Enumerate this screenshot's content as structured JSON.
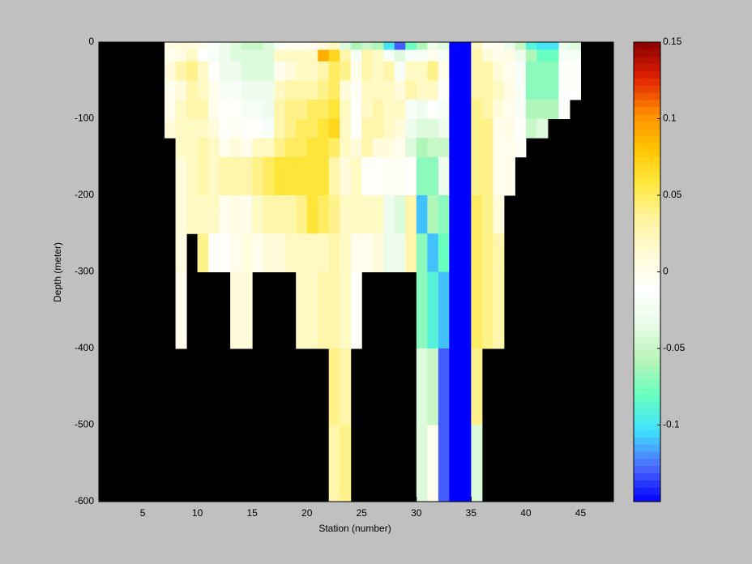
{
  "chart_data": {
    "type": "heatmap",
    "xlabel": "Station (number)",
    "ylabel": "Depth (meter)",
    "xlim": [
      1,
      48
    ],
    "ylim": [
      -600,
      0
    ],
    "xticks": [
      5,
      10,
      15,
      20,
      25,
      30,
      35,
      40,
      45
    ],
    "yticks": [
      0,
      -100,
      -200,
      -300,
      -400,
      -500,
      -600
    ],
    "clim": [
      -0.15,
      0.15
    ],
    "cticks": [
      0.15,
      0.1,
      0.05,
      0,
      -0.05,
      -0.1
    ],
    "background": "#000000",
    "colormap": [
      "#0000ff",
      "#4d6bff",
      "#40e0ff",
      "#66ffc0",
      "#b8f5b8",
      "#e8fbe8",
      "#ffffff",
      "#fffbd8",
      "#fff5a0",
      "#ffe840",
      "#ffc400",
      "#ff8c00",
      "#e02000",
      "#8b0000"
    ],
    "x_edges": [
      7,
      8,
      9,
      10,
      11,
      12,
      13,
      14,
      15,
      16,
      17,
      18,
      19,
      20,
      21,
      22,
      23,
      24,
      25,
      26,
      27,
      28,
      29,
      30,
      31,
      32,
      33,
      34,
      35,
      36,
      37,
      38,
      39,
      40,
      41,
      42,
      43,
      44,
      45
    ],
    "y_edges": [
      0,
      -10,
      -25,
      -50,
      -75,
      -100,
      -125,
      -150,
      -200,
      -250,
      -300,
      -400,
      -500,
      -600
    ],
    "z": [
      [
        0.005,
        0,
        0.01,
        0,
        0,
        0.01,
        null,
        null,
        null,
        null,
        null,
        null,
        null
      ],
      [
        0.01,
        0.005,
        0.03,
        0.01,
        0.02,
        0.02,
        0.02,
        0.01,
        0.01,
        0.005,
        0,
        null,
        null
      ],
      [
        0.01,
        0.02,
        0.04,
        0.03,
        0.03,
        0.02,
        0.02,
        0.02,
        0.02,
        null,
        null,
        null,
        null
      ],
      [
        0,
        -0.01,
        0.02,
        0.02,
        0.03,
        0.02,
        0.03,
        0.03,
        0.02,
        0.04,
        null,
        null,
        null
      ],
      [
        -0.02,
        -0.02,
        -0.01,
        0,
        0,
        0.01,
        0.02,
        0.02,
        0.02,
        -0.01,
        null,
        null,
        null
      ],
      [
        -0.03,
        -0.03,
        -0.03,
        -0.02,
        -0.01,
        -0.01,
        0,
        0.03,
        0,
        -0.01,
        null,
        null,
        null
      ],
      [
        -0.04,
        -0.04,
        -0.03,
        -0.02,
        -0.01,
        -0.005,
        0.01,
        0.03,
        0.005,
        0,
        0.01,
        null,
        null
      ],
      [
        -0.05,
        -0.04,
        -0.04,
        -0.03,
        -0.02,
        -0.01,
        0,
        0.03,
        0,
        0.01,
        0.01,
        null,
        null
      ],
      [
        -0.05,
        -0.04,
        -0.04,
        -0.03,
        -0.02,
        -0.01,
        0.02,
        0.04,
        0.02,
        0,
        null,
        null,
        null
      ],
      [
        -0.04,
        -0.04,
        -0.04,
        -0.03,
        -0.03,
        -0.02,
        0.02,
        0.05,
        0.03,
        0.01,
        null,
        null,
        null
      ],
      [
        -0.02,
        0.02,
        0,
        0.02,
        0.03,
        0.03,
        0.04,
        0.06,
        0.03,
        0.01,
        null,
        null,
        null
      ],
      [
        0,
        0.02,
        0.01,
        0.03,
        0.04,
        0.04,
        0.05,
        0.06,
        0.03,
        0.02,
        null,
        null,
        null
      ],
      [
        0,
        0.02,
        0.02,
        0.03,
        0.04,
        0.05,
        0.05,
        0.06,
        0.04,
        0.02,
        0.02,
        null,
        null
      ],
      [
        0,
        0.02,
        0.02,
        0.03,
        0.05,
        0.05,
        0.06,
        0.06,
        0.06,
        0.02,
        0.02,
        null,
        null
      ],
      [
        0.01,
        0.09,
        0.03,
        0.04,
        0.05,
        0.06,
        0.06,
        0.06,
        0.05,
        0.02,
        0.03,
        null,
        null
      ],
      [
        0.02,
        0.07,
        0.05,
        0.05,
        0.06,
        0.07,
        0.05,
        0.03,
        0.04,
        0.03,
        0.03,
        0.04,
        0.03
      ],
      [
        -0.04,
        0.03,
        0.04,
        0.01,
        0.02,
        0.02,
        0.02,
        0.01,
        0.02,
        0.02,
        0.02,
        0.03,
        0.04
      ],
      [
        -0.06,
        -0.02,
        0,
        -0.005,
        -0.01,
        -0.01,
        0.01,
        0.02,
        0.02,
        0,
        -0.01,
        null,
        null
      ],
      [
        -0.05,
        0.03,
        0.03,
        0.02,
        0.02,
        0.03,
        0.03,
        -0.01,
        0.02,
        0,
        null,
        null,
        null
      ],
      [
        -0.06,
        0.02,
        0.02,
        0.02,
        0.03,
        0.03,
        0.01,
        -0.01,
        0.02,
        0.01,
        null,
        null,
        null
      ],
      [
        -0.1,
        -0.02,
        0.03,
        0.02,
        0.02,
        0.02,
        0.01,
        -0.005,
        -0.03,
        -0.03,
        null,
        null,
        null
      ],
      [
        -0.13,
        -0.04,
        -0.02,
        0.01,
        0.02,
        0.01,
        0,
        -0.005,
        -0.04,
        -0.03,
        null,
        null,
        null
      ],
      [
        -0.08,
        -0.02,
        0.02,
        0.03,
        -0.02,
        -0.03,
        -0.04,
        -0.01,
        0.03,
        0.03,
        null,
        null,
        null
      ],
      [
        -0.06,
        -0.02,
        0.02,
        0.02,
        -0.03,
        -0.04,
        -0.06,
        -0.07,
        -0.11,
        -0.07,
        -0.07,
        -0.04,
        -0.04
      ],
      [
        -0.03,
        0,
        0.04,
        0.02,
        -0.01,
        -0.04,
        -0.05,
        -0.07,
        -0.06,
        -0.11,
        -0.09,
        -0.05,
        0
      ],
      [
        -0.04,
        -0.02,
        0,
        -0.01,
        -0.02,
        -0.03,
        -0.05,
        -0.03,
        -0.07,
        -0.08,
        -0.11,
        -0.13,
        -0.13
      ],
      [
        -0.15,
        -0.15,
        -0.15,
        -0.15,
        -0.15,
        -0.15,
        -0.15,
        -0.15,
        -0.15,
        -0.15,
        -0.15,
        -0.15,
        -0.15
      ],
      [
        -0.15,
        -0.15,
        -0.15,
        -0.15,
        -0.15,
        -0.15,
        -0.15,
        -0.15,
        -0.15,
        -0.15,
        -0.15,
        -0.15,
        -0.15
      ],
      [
        0.02,
        0.03,
        0.03,
        0.03,
        0.04,
        0.04,
        0.04,
        0.04,
        0.05,
        0.05,
        0.05,
        0.04,
        -0.04
      ],
      [
        0,
        0.01,
        0.03,
        0.03,
        0.03,
        0.04,
        0.04,
        0.04,
        0.04,
        0.04,
        0.04,
        null,
        null
      ],
      [
        0,
        0,
        0.01,
        0.02,
        0.01,
        0,
        0,
        0,
        0.01,
        0.03,
        0.03,
        null,
        null
      ],
      [
        -0.03,
        0.005,
        0,
        0.005,
        0,
        0.005,
        0,
        0,
        null,
        null,
        null,
        null,
        null
      ],
      [
        -0.05,
        -0.03,
        -0.02,
        -0.02,
        -0.02,
        -0.01,
        -0.005,
        null,
        null,
        null,
        null,
        null,
        null
      ],
      [
        -0.09,
        -0.06,
        -0.07,
        -0.07,
        -0.06,
        -0.05,
        null,
        null,
        null,
        null,
        null,
        null,
        null
      ],
      [
        -0.1,
        -0.08,
        -0.07,
        -0.07,
        -0.06,
        -0.04,
        null,
        null,
        null,
        null,
        null,
        null,
        null
      ],
      [
        -0.1,
        -0.08,
        -0.07,
        -0.07,
        -0.06,
        null,
        null,
        null,
        null,
        null,
        null,
        null,
        null
      ],
      [
        -0.03,
        -0.02,
        -0.01,
        -0.01,
        -0.01,
        null,
        null,
        null,
        null,
        null,
        null,
        null,
        null
      ],
      [
        -0.04,
        -0.02,
        -0.01,
        -0.01,
        null,
        null,
        null,
        null,
        null,
        null,
        null,
        null,
        null
      ]
    ]
  }
}
